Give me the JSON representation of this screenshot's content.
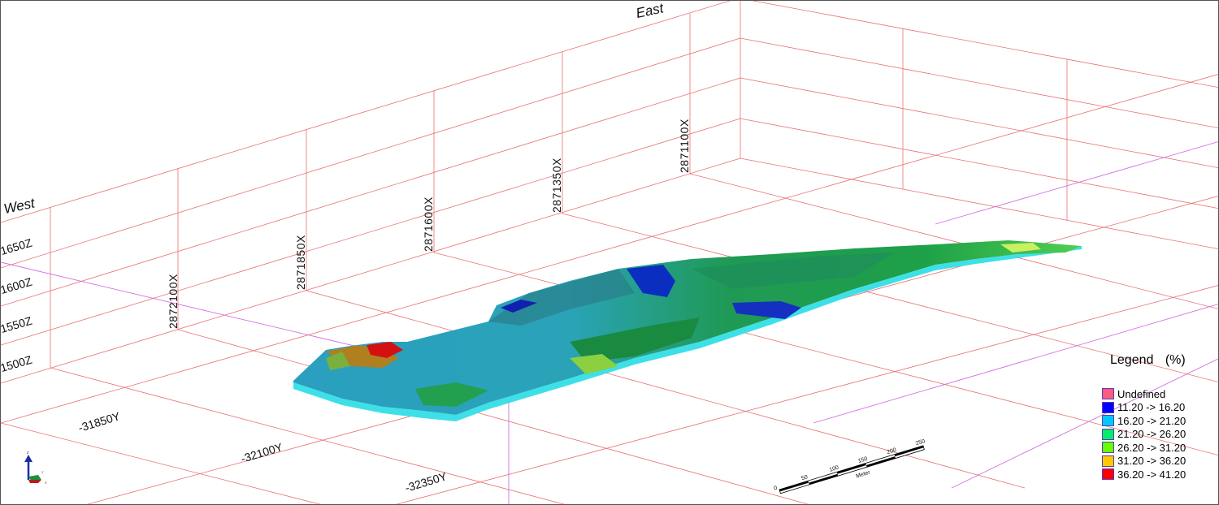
{
  "view": {
    "direction_labels": {
      "west": "West",
      "east": "East"
    },
    "x_labels": [
      "2872100X",
      "2871850X",
      "2871600X",
      "2871350X",
      "2871100X"
    ],
    "z_labels": [
      "1650Z",
      "1600Z",
      "1550Z",
      "1500Z"
    ],
    "y_labels": [
      "-31850Y",
      "-32100Y",
      "-32350Y"
    ]
  },
  "legend": {
    "title": "Legend (%)",
    "items": [
      {
        "label": "Undefined",
        "color": "#ff5a7f"
      },
      {
        "label": "11.20 -> 16.20",
        "color": "#0000ff"
      },
      {
        "label": "16.20 -> 21.20",
        "color": "#00c8ff"
      },
      {
        "label": "21.20 -> 26.20",
        "color": "#00ee6a"
      },
      {
        "label": "26.20 -> 31.20",
        "color": "#66ff00"
      },
      {
        "label": "31.20 -> 36.20",
        "color": "#ffc800"
      },
      {
        "label": "36.20 -> 41.20",
        "color": "#ff0000"
      }
    ]
  },
  "scale_bar": {
    "ticks": [
      "0",
      "50",
      "100",
      "150",
      "200",
      "250"
    ],
    "unit": "Meter"
  },
  "axis_triad": {
    "z": "z",
    "y": "y",
    "x": "x"
  },
  "colors": {
    "grid": "#e06060",
    "highlight_grid": "#d070e0"
  }
}
